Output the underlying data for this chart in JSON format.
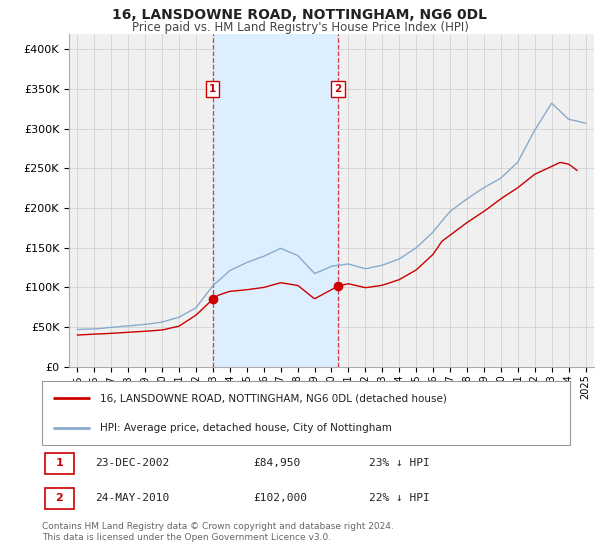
{
  "title": "16, LANSDOWNE ROAD, NOTTINGHAM, NG6 0DL",
  "subtitle": "Price paid vs. HM Land Registry's House Price Index (HPI)",
  "legend_line1": "16, LANSDOWNE ROAD, NOTTINGHAM, NG6 0DL (detached house)",
  "legend_line2": "HPI: Average price, detached house, City of Nottingham",
  "footnote1": "Contains HM Land Registry data © Crown copyright and database right 2024.",
  "footnote2": "This data is licensed under the Open Government Licence v3.0.",
  "sale1_label": "1",
  "sale1_date": "23-DEC-2002",
  "sale1_price": "£84,950",
  "sale1_hpi": "23% ↓ HPI",
  "sale1_x": 2002.98,
  "sale1_y": 84950,
  "sale2_label": "2",
  "sale2_date": "24-MAY-2010",
  "sale2_price": "£102,000",
  "sale2_hpi": "22% ↓ HPI",
  "sale2_x": 2010.39,
  "sale2_y": 102000,
  "shade_start": 2002.98,
  "shade_end": 2010.39,
  "red_color": "#cc0000",
  "blue_color": "#88aacc",
  "shade_color": "#ddeeff",
  "grid_color": "#cccccc",
  "bg_color": "#f0f0f0",
  "ylim": [
    0,
    420000
  ],
  "xlim": [
    1994.5,
    2025.5
  ],
  "yticks": [
    0,
    50000,
    100000,
    150000,
    200000,
    250000,
    300000,
    350000,
    400000
  ],
  "ytick_labels": [
    "£0",
    "£50K",
    "£100K",
    "£150K",
    "£200K",
    "£250K",
    "£300K",
    "£350K",
    "£400K"
  ],
  "xticks": [
    1995,
    1996,
    1997,
    1998,
    1999,
    2000,
    2001,
    2002,
    2003,
    2004,
    2005,
    2006,
    2007,
    2008,
    2009,
    2010,
    2011,
    2012,
    2013,
    2014,
    2015,
    2016,
    2017,
    2018,
    2019,
    2020,
    2021,
    2022,
    2023,
    2024,
    2025
  ],
  "hpi_anchors": [
    [
      1995.0,
      47000
    ],
    [
      1996.0,
      47500
    ],
    [
      1997.0,
      50000
    ],
    [
      1998.0,
      52000
    ],
    [
      1999.0,
      54000
    ],
    [
      2000.0,
      57000
    ],
    [
      2001.0,
      63000
    ],
    [
      2002.0,
      75000
    ],
    [
      2003.0,
      103000
    ],
    [
      2004.0,
      122000
    ],
    [
      2005.0,
      132000
    ],
    [
      2006.0,
      140000
    ],
    [
      2007.0,
      150000
    ],
    [
      2008.0,
      141000
    ],
    [
      2009.0,
      118000
    ],
    [
      2010.0,
      127000
    ],
    [
      2011.0,
      130000
    ],
    [
      2012.0,
      124000
    ],
    [
      2013.0,
      128000
    ],
    [
      2014.0,
      136000
    ],
    [
      2015.0,
      150000
    ],
    [
      2016.0,
      170000
    ],
    [
      2017.0,
      196000
    ],
    [
      2018.0,
      212000
    ],
    [
      2019.0,
      226000
    ],
    [
      2020.0,
      238000
    ],
    [
      2021.0,
      258000
    ],
    [
      2022.0,
      298000
    ],
    [
      2023.0,
      332000
    ],
    [
      2024.0,
      312000
    ],
    [
      2025.0,
      307000
    ]
  ],
  "pp_anchors": [
    [
      1995.0,
      40000
    ],
    [
      1996.0,
      41000
    ],
    [
      1997.0,
      42000
    ],
    [
      1998.0,
      43500
    ],
    [
      1999.0,
      44500
    ],
    [
      2000.0,
      46000
    ],
    [
      2001.0,
      51000
    ],
    [
      2002.0,
      65000
    ],
    [
      2002.98,
      84950
    ],
    [
      2003.3,
      90000
    ],
    [
      2004.0,
      95000
    ],
    [
      2005.0,
      97000
    ],
    [
      2006.0,
      100000
    ],
    [
      2007.0,
      106000
    ],
    [
      2008.0,
      103000
    ],
    [
      2009.0,
      86000
    ],
    [
      2010.39,
      102000
    ],
    [
      2011.0,
      105000
    ],
    [
      2012.0,
      100000
    ],
    [
      2013.0,
      103000
    ],
    [
      2014.0,
      110000
    ],
    [
      2015.0,
      122000
    ],
    [
      2016.0,
      142000
    ],
    [
      2016.5,
      158000
    ],
    [
      2017.0,
      166000
    ],
    [
      2018.0,
      182000
    ],
    [
      2019.0,
      196000
    ],
    [
      2020.0,
      212000
    ],
    [
      2021.0,
      226000
    ],
    [
      2022.0,
      243000
    ],
    [
      2023.0,
      253000
    ],
    [
      2023.5,
      258000
    ],
    [
      2024.0,
      256000
    ],
    [
      2024.5,
      248000
    ]
  ]
}
